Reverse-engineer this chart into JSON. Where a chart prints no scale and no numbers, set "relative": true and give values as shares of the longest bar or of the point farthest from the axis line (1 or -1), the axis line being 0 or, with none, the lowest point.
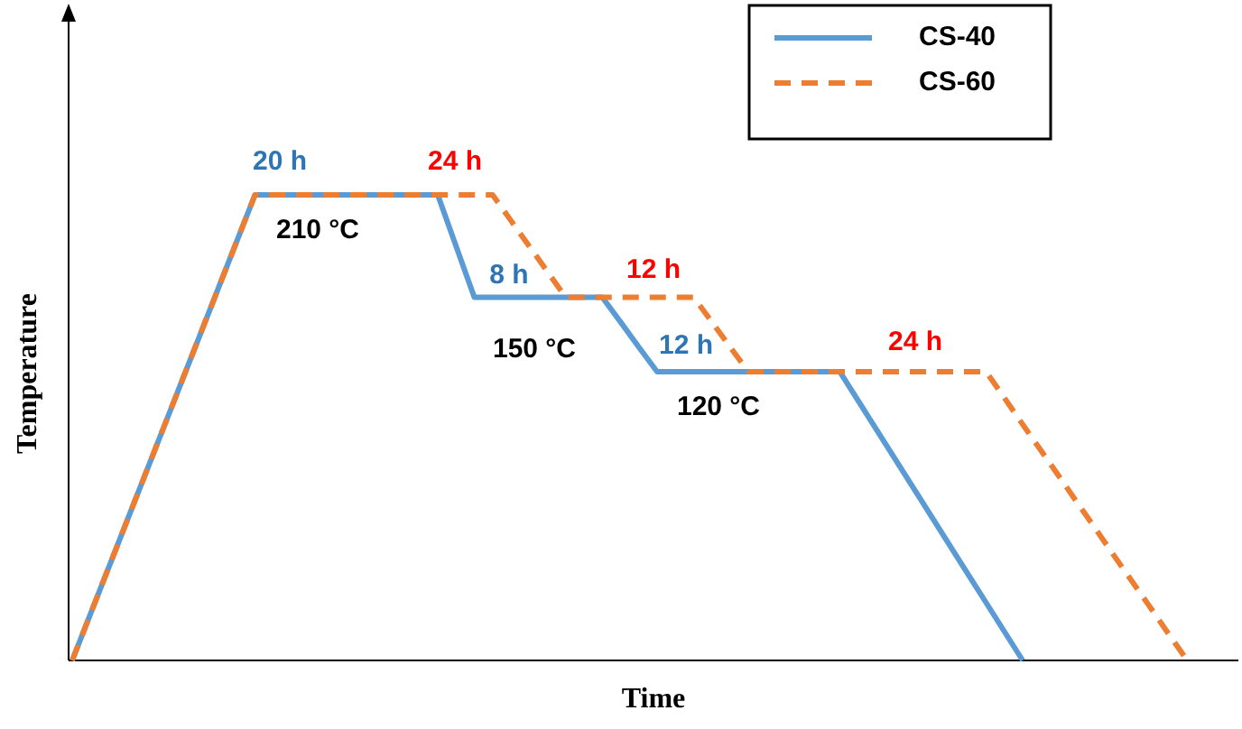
{
  "chart_data": {
    "type": "line",
    "relative": true,
    "xlabel": "Time",
    "ylabel": "Temperature",
    "legend": "top right",
    "marker": "none",
    "categories": [
      null,
      null,
      null,
      null,
      null,
      null,
      null,
      null,
      null,
      null,
      null,
      null,
      null,
      null,
      null,
      null,
      null,
      null,
      null,
      null,
      null,
      null,
      null,
      null,
      null,
      null,
      null,
      null,
      null,
      null,
      null,
      null,
      null,
      null,
      null,
      null,
      null,
      null,
      null,
      null,
      null,
      null,
      null,
      null,
      null,
      null,
      null,
      null,
      null,
      null,
      null,
      null,
      null,
      null,
      null,
      null,
      null,
      null,
      null,
      null,
      null,
      null
    ],
    "series": [
      {
        "name": "CS-40",
        "color": "#5b9bd5",
        "line_style": "solid",
        "values": [
          0,
          0.1,
          0.2,
          0.3,
          0.4,
          0.5,
          0.6,
          0.7,
          0.8,
          0.9,
          1,
          1,
          1,
          1,
          1,
          1,
          1,
          1,
          1,
          1,
          1,
          0.89,
          0.78,
          0.78,
          0.78,
          0.78,
          0.78,
          0.78,
          0.78,
          0.78,
          0.727,
          0.673,
          0.62,
          0.62,
          0.62,
          0.62,
          0.62,
          0.62,
          0.62,
          0.62,
          0.62,
          0.62,
          0.62,
          0.558,
          0.496,
          0.434,
          0.372,
          0.31,
          0.248,
          0.186,
          0.124,
          0.062,
          0,
          null,
          null,
          null,
          null,
          null,
          null,
          null,
          null,
          null
        ]
      },
      {
        "name": "CS-60",
        "color": "#ed7d31",
        "line_style": "dashed",
        "values": [
          0,
          0.1,
          0.2,
          0.3,
          0.4,
          0.5,
          0.6,
          0.7,
          0.8,
          0.9,
          1,
          1,
          1,
          1,
          1,
          1,
          1,
          1,
          1,
          1,
          1,
          1,
          1,
          1,
          0.945,
          0.89,
          0.835,
          0.78,
          0.78,
          0.78,
          0.78,
          0.78,
          0.78,
          0.78,
          0.78,
          0.727,
          0.673,
          0.62,
          0.62,
          0.62,
          0.62,
          0.62,
          0.62,
          0.62,
          0.62,
          0.62,
          0.62,
          0.62,
          0.62,
          0.62,
          0.62,
          0.564,
          0.507,
          0.451,
          0.395,
          0.338,
          0.282,
          0.225,
          0.169,
          0.113,
          0.056,
          0
        ]
      }
    ],
    "annotations": [
      "20 h",
      "24 h",
      "210 °C",
      "8 h",
      "12 h",
      "150 °C",
      "12 h",
      "24 h",
      "120 °C"
    ]
  }
}
